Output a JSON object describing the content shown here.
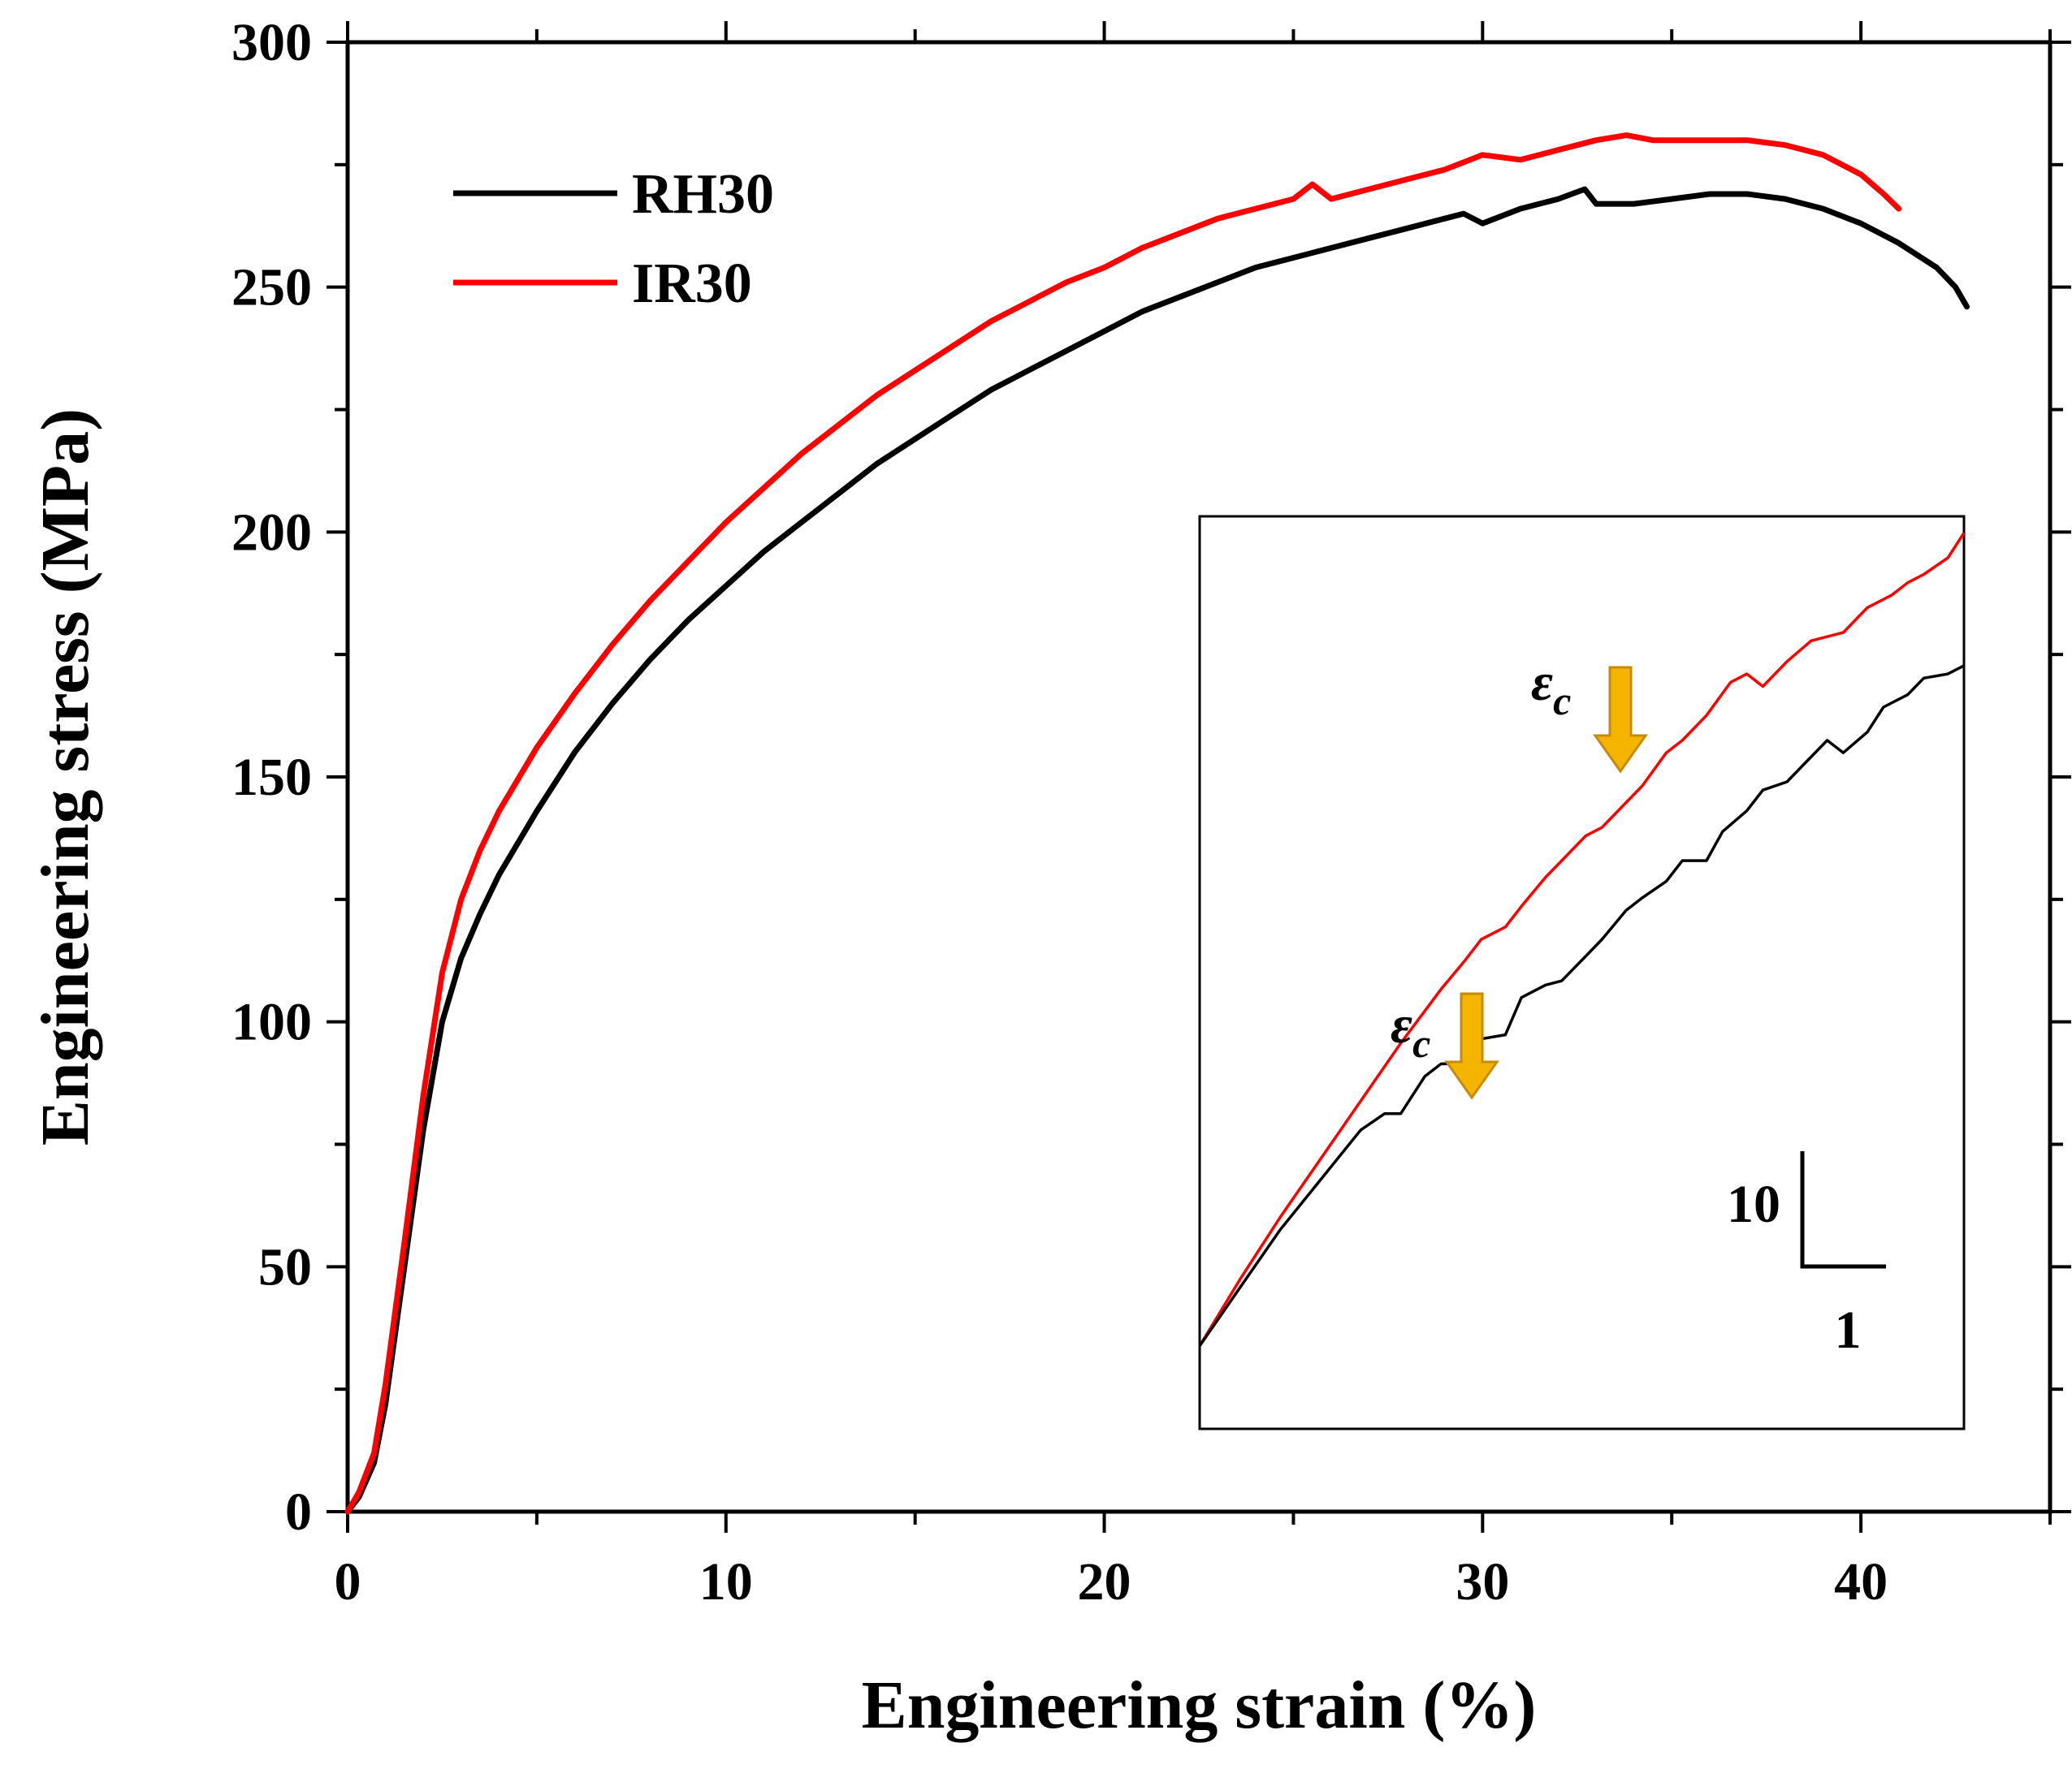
{
  "chart_data": {
    "type": "line",
    "title": "",
    "xlabel": "Engineering strain (%)",
    "ylabel": "Engineering stress (MPa)",
    "xlim": [
      0,
      45
    ],
    "ylim": [
      0,
      300
    ],
    "xticks": [
      0,
      10,
      20,
      30,
      40
    ],
    "yticks": [
      0,
      50,
      100,
      150,
      200,
      250,
      300
    ],
    "grid": false,
    "legend_position": "top-left",
    "colors": {
      "RH30": "#000000",
      "IR30": "#ff0000",
      "arrow": "#f5b400",
      "arrow_edge": "#c88a00"
    },
    "series": [
      {
        "name": "RH30",
        "x": [
          0,
          0.3,
          0.7,
          1.0,
          1.5,
          2.0,
          2.5,
          3.0,
          3.5,
          4.0,
          5.0,
          6.0,
          7.0,
          8.0,
          9.0,
          10.0,
          11.0,
          12.0,
          13.0,
          14.0,
          15.0,
          16.0,
          17.0,
          18.0,
          19.0,
          20.0,
          21.0,
          22.0,
          23.0,
          24.0,
          25.0,
          26.0,
          27.0,
          28.0,
          29.0,
          29.5,
          30.0,
          31.0,
          32.0,
          32.7,
          33.0,
          34.0,
          35.0,
          36.0,
          37.0,
          38.0,
          39.0,
          40.0,
          41.0,
          42.0,
          42.5,
          42.8
        ],
        "values": [
          0,
          3,
          10,
          22,
          50,
          78,
          100,
          113,
          122,
          130,
          143,
          155,
          165,
          174,
          182,
          189,
          196,
          202,
          208,
          214,
          219,
          224,
          229,
          233,
          237,
          241,
          245,
          248,
          251,
          254,
          256,
          258,
          260,
          262,
          264,
          265,
          263,
          266,
          268,
          270,
          267,
          267,
          268,
          269,
          269,
          268,
          266,
          263,
          259,
          254,
          250,
          246
        ]
      },
      {
        "name": "IR30",
        "x": [
          0,
          0.3,
          0.7,
          1.0,
          1.5,
          2.0,
          2.5,
          3.0,
          3.5,
          4.0,
          5.0,
          6.0,
          7.0,
          8.0,
          9.0,
          10.0,
          11.0,
          12.0,
          13.0,
          14.0,
          15.0,
          16.0,
          17.0,
          18.0,
          19.0,
          20.0,
          21.0,
          22.0,
          23.0,
          24.0,
          25.0,
          25.5,
          26.0,
          27.0,
          28.0,
          29.0,
          30.0,
          31.0,
          32.0,
          33.0,
          33.8,
          34.5,
          35.0,
          36.0,
          37.0,
          38.0,
          39.0,
          40.0,
          40.6,
          41.0
        ],
        "values": [
          0,
          4,
          12,
          26,
          55,
          85,
          110,
          125,
          135,
          143,
          156,
          167,
          177,
          186,
          194,
          202,
          209,
          216,
          222,
          228,
          233,
          238,
          243,
          247,
          251,
          254,
          258,
          261,
          264,
          266,
          268,
          271,
          268,
          270,
          272,
          274,
          277,
          276,
          278,
          280,
          281,
          280,
          280,
          280,
          280,
          279,
          277,
          273,
          269,
          266
        ]
      }
    ],
    "inset": {
      "series": [
        {
          "name": "IR30",
          "x": [
            0,
            0.5,
            1.0,
            1.5,
            2.0,
            2.5,
            3.0,
            3.3,
            3.5,
            3.8,
            4.0,
            4.3,
            4.5,
            4.8,
            5.0,
            5.3,
            5.5,
            5.8,
            6.0,
            6.3,
            6.6,
            6.8,
            7.0,
            7.3,
            7.6,
            7.8,
            8.0,
            8.3,
            8.6,
            8.8,
            9.0,
            9.3,
            9.5
          ],
          "values": [
            0,
            8,
            15.5,
            22.5,
            29.5,
            36.5,
            43,
            46.5,
            49,
            50.5,
            53,
            56.5,
            58.5,
            61.5,
            62.5,
            65.5,
            67.5,
            71.5,
            73,
            76,
            80,
            81,
            79.5,
            82.5,
            85,
            85.5,
            86,
            89,
            90.5,
            92,
            93,
            95,
            98
          ]
        },
        {
          "name": "RH30",
          "x": [
            0,
            0.5,
            1.0,
            1.5,
            2.0,
            2.3,
            2.5,
            2.8,
            3.0,
            3.3,
            3.5,
            3.8,
            4.0,
            4.3,
            4.5,
            4.8,
            5.0,
            5.3,
            5.5,
            5.8,
            6.0,
            6.3,
            6.5,
            6.8,
            7.0,
            7.3,
            7.5,
            7.8,
            8.0,
            8.3,
            8.5,
            8.8,
            9.0,
            9.3,
            9.5
          ],
          "values": [
            0,
            7,
            14,
            20,
            26,
            28,
            28,
            32.5,
            34,
            34,
            37,
            37.5,
            42,
            43.5,
            44,
            47,
            49,
            52.5,
            54,
            56,
            58.5,
            58.5,
            62,
            64.5,
            67,
            68,
            70,
            73,
            71.5,
            74,
            77,
            78.5,
            80.5,
            81,
            82
          ]
        }
      ],
      "xlim": [
        0,
        9.5
      ],
      "ylim": [
        -10,
        100
      ],
      "critical_strain_label": "ε",
      "critical_strain_subscript": "c",
      "scale_bar_vertical": "10",
      "scale_bar_horizontal": "1"
    }
  }
}
